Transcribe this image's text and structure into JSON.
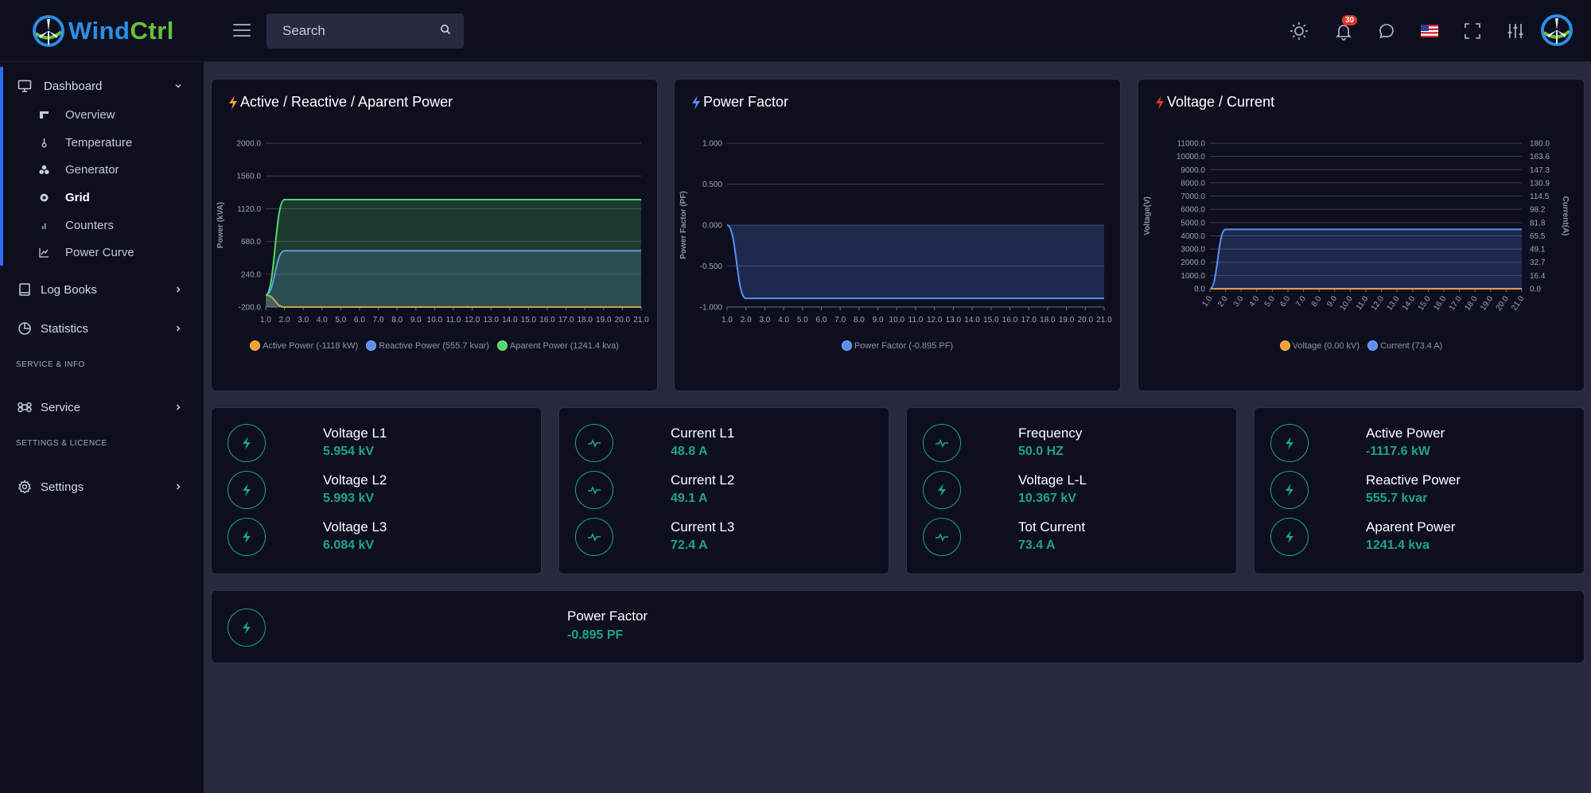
{
  "app": {
    "logo_text_part1": "Wind",
    "logo_text_part2": "Ctrl"
  },
  "header": {
    "search_placeholder": "Search",
    "notification_count": "30",
    "icons": [
      "menu-icon",
      "search-icon",
      "sun-icon",
      "bell-icon",
      "chat-icon",
      "us-flag-icon",
      "fullscreen-icon",
      "sliders-icon"
    ]
  },
  "sidebar": {
    "dashboard": {
      "label": "Dashboard",
      "icon": "monitor-icon"
    },
    "sub_items": [
      {
        "label": "Overview",
        "icon": "overview-icon",
        "active": false
      },
      {
        "label": "Temperature",
        "icon": "thermometer-icon",
        "active": false
      },
      {
        "label": "Generator",
        "icon": "generator-icon",
        "active": false
      },
      {
        "label": "Grid",
        "icon": "grid-icon",
        "active": true
      },
      {
        "label": "Counters",
        "icon": "counters-icon",
        "active": false
      },
      {
        "label": "Power Curve",
        "icon": "line-chart-icon",
        "active": false
      }
    ],
    "log_books": "Log Books",
    "statistics": "Statistics",
    "section_service": "SERVICE & INFO",
    "service": "Service",
    "section_settings": "SETTINGS & LICENCE",
    "settings": "Settings"
  },
  "charts": {
    "power": {
      "title": "Active / Reactive / Aparent Power",
      "legend": [
        "Active Power (-1118 kW)",
        "Reactive Power (555.7 kvar)",
        "Aparent Power (1241.4 kva)"
      ]
    },
    "pf": {
      "title": "Power Factor",
      "legend": [
        "Power Factor (-0.895 PF)"
      ]
    },
    "vc": {
      "title": "Voltage / Current",
      "legend": [
        "Voltage (0.00 kV)",
        "Current (73.4 A)"
      ]
    }
  },
  "chart_data": [
    {
      "type": "area",
      "title": "Active / Reactive / Aparent Power",
      "ylabel": "Power (kVA)",
      "ylim": [
        -200,
        2000
      ],
      "y_ticks": [
        "2000.0",
        "1560.0",
        "1120.0",
        "680.0",
        "240.0",
        "-200.0"
      ],
      "x": [
        "1.0",
        "2.0",
        "3.0",
        "4.0",
        "5.0",
        "6.0",
        "7.0",
        "8.0",
        "9.0",
        "10.0",
        "11.0",
        "12.0",
        "13.0",
        "14.0",
        "15.0",
        "16.0",
        "17.0",
        "18.0",
        "19.0",
        "20.0",
        "21.0"
      ],
      "series": [
        {
          "name": "Active Power (-1118 kW)",
          "color": "#f5a031",
          "values": [
            -40,
            -1118,
            -1118,
            -1118,
            -1118,
            -1118,
            -1118,
            -1118,
            -1118,
            -1118,
            -1118,
            -1118,
            -1118,
            -1118,
            -1118,
            -1118,
            -1118,
            -1118,
            -1118,
            -1118,
            -1118
          ]
        },
        {
          "name": "Reactive Power (555.7 kvar)",
          "color": "#5b8ef5",
          "values": [
            -40,
            555.7,
            555.7,
            555.7,
            555.7,
            555.7,
            555.7,
            555.7,
            555.7,
            555.7,
            555.7,
            555.7,
            555.7,
            555.7,
            555.7,
            555.7,
            555.7,
            555.7,
            555.7,
            555.7,
            555.7
          ]
        },
        {
          "name": "Aparent Power (1241.4 kva)",
          "color": "#54d86a",
          "values": [
            -40,
            1241.4,
            1241.4,
            1241.4,
            1241.4,
            1241.4,
            1241.4,
            1241.4,
            1241.4,
            1241.4,
            1241.4,
            1241.4,
            1241.4,
            1241.4,
            1241.4,
            1241.4,
            1241.4,
            1241.4,
            1241.4,
            1241.4,
            1241.4
          ]
        }
      ],
      "legend_position": "bottom"
    },
    {
      "type": "area",
      "title": "Power Factor",
      "ylabel": "Power Factor (PF)",
      "ylim": [
        -1,
        1
      ],
      "y_ticks": [
        "1.000",
        "0.500",
        "0.000",
        "-0.500",
        "-1.000"
      ],
      "x": [
        "1.0",
        "2.0",
        "3.0",
        "4.0",
        "5.0",
        "6.0",
        "7.0",
        "8.0",
        "9.0",
        "10.0",
        "11.0",
        "12.0",
        "13.0",
        "14.0",
        "15.0",
        "16.0",
        "17.0",
        "18.0",
        "19.0",
        "20.0",
        "21.0"
      ],
      "series": [
        {
          "name": "Power Factor (-0.895 PF)",
          "color": "#5b8ef5",
          "values": [
            0,
            -0.895,
            -0.895,
            -0.895,
            -0.895,
            -0.895,
            -0.895,
            -0.895,
            -0.895,
            -0.895,
            -0.895,
            -0.895,
            -0.895,
            -0.895,
            -0.895,
            -0.895,
            -0.895,
            -0.895,
            -0.895,
            -0.895,
            -0.895
          ]
        }
      ],
      "legend_position": "bottom"
    },
    {
      "type": "area",
      "title": "Voltage / Current",
      "ylabel": "Voltage(V)",
      "y2label": "Current(A)",
      "ylim": [
        0,
        11000
      ],
      "y2lim": [
        0,
        180
      ],
      "y_ticks": [
        "11000.0",
        "10000.0",
        "9000.0",
        "8000.0",
        "7000.0",
        "6000.0",
        "5000.0",
        "4000.0",
        "3000.0",
        "2000.0",
        "1000.0",
        "0.0"
      ],
      "y2_ticks": [
        "180.0",
        "163.6",
        "147.3",
        "130.9",
        "114.5",
        "98.2",
        "81.8",
        "65.5",
        "49.1",
        "32.7",
        "16.4",
        "0.0"
      ],
      "x": [
        "1.0",
        "2.0",
        "3.0",
        "4.0",
        "5.0",
        "6.0",
        "7.0",
        "8.0",
        "9.0",
        "10.0",
        "11.0",
        "12.0",
        "13.0",
        "14.0",
        "15.0",
        "16.0",
        "17.0",
        "18.0",
        "19.0",
        "20.0",
        "21.0"
      ],
      "series": [
        {
          "name": "Voltage (0.00 kV)",
          "axis": "left",
          "color": "#f5a031",
          "values": [
            0,
            0,
            0,
            0,
            0,
            0,
            0,
            0,
            0,
            0,
            0,
            0,
            0,
            0,
            0,
            0,
            0,
            0,
            0,
            0,
            0
          ]
        },
        {
          "name": "Current (73.4 A)",
          "axis": "right",
          "color": "#5b8ef5",
          "values": [
            0,
            73.4,
            73.4,
            73.4,
            73.4,
            73.4,
            73.4,
            73.4,
            73.4,
            73.4,
            73.4,
            73.4,
            73.4,
            73.4,
            73.4,
            73.4,
            73.4,
            73.4,
            73.4,
            73.4,
            73.4
          ]
        }
      ],
      "legend_position": "bottom"
    }
  ],
  "metrics": [
    [
      {
        "label": "Voltage L1",
        "value": "5.954 kV",
        "icon": "bolt-icon"
      },
      {
        "label": "Voltage L2",
        "value": "5.993 kV",
        "icon": "bolt-icon"
      },
      {
        "label": "Voltage L3",
        "value": "6.084 kV",
        "icon": "bolt-icon"
      }
    ],
    [
      {
        "label": "Current L1",
        "value": "48.8 A",
        "icon": "pulse-icon"
      },
      {
        "label": "Current L2",
        "value": "49.1 A",
        "icon": "pulse-icon"
      },
      {
        "label": "Current L3",
        "value": "72.4 A",
        "icon": "pulse-icon"
      }
    ],
    [
      {
        "label": "Frequency",
        "value": "50.0 HZ",
        "icon": "pulse-icon"
      },
      {
        "label": "Voltage L-L",
        "value": "10.367 kV",
        "icon": "bolt-icon"
      },
      {
        "label": "Tot Current",
        "value": "73.4 A",
        "icon": "pulse-icon"
      }
    ],
    [
      {
        "label": "Active Power",
        "value": "-1117.6 kW",
        "icon": "bolt-icon"
      },
      {
        "label": "Reactive Power",
        "value": "555.7 kvar",
        "icon": "bolt-icon"
      },
      {
        "label": "Aparent Power",
        "value": "1241.4 kva",
        "icon": "bolt-icon"
      }
    ]
  ],
  "power_factor_card": {
    "label": "Power Factor",
    "value": "-0.895 PF",
    "icon": "bolt-icon"
  }
}
